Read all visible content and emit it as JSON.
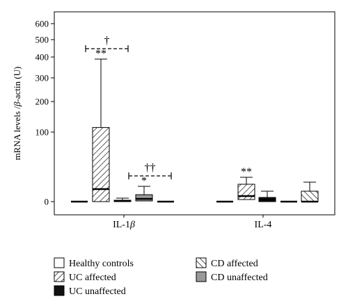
{
  "chart_data": {
    "type": "box",
    "title": "",
    "ylabel_parts": [
      "mRNA levels /",
      "β",
      "-actin (U)"
    ],
    "y_ticks": [
      {
        "label": "0",
        "value": 0
      },
      {
        "label": "100",
        "value": 100
      },
      {
        "label": "200",
        "value": 200
      },
      {
        "label": "300",
        "value": 300
      },
      {
        "label": "400",
        "value": 400
      },
      {
        "label": "500",
        "value": 500
      },
      {
        "label": "600",
        "value": 600
      }
    ],
    "categories": [
      {
        "label_main": "IL-1",
        "label_greek": "β"
      },
      {
        "label_main": "IL-4",
        "label_greek": ""
      }
    ],
    "series": [
      {
        "name": "Healthy controls",
        "fill": "white",
        "pattern": "none"
      },
      {
        "name": "UC affected",
        "fill": "hatch",
        "pattern": "forward"
      },
      {
        "name": "UC unaffected",
        "fill": "#111111",
        "pattern": "none"
      },
      {
        "name": "CD affected",
        "fill": "hatch",
        "pattern": "backward"
      },
      {
        "name": "CD unaffected",
        "fill": "#999999",
        "pattern": "none"
      }
    ],
    "boxes": [
      {
        "category": 0,
        "series": 0,
        "min": 0,
        "q1": 0,
        "median": 0,
        "q3": 0,
        "max": 0
      },
      {
        "category": 0,
        "series": 1,
        "min": 0,
        "q1": 0,
        "median": 18,
        "q3": 115,
        "max": 390
      },
      {
        "category": 0,
        "series": 2,
        "min": 0,
        "q1": 0,
        "median": 1,
        "q3": 2,
        "max": 5
      },
      {
        "category": 0,
        "series": 4,
        "min": 0,
        "q1": 1,
        "median": 4,
        "q3": 10,
        "max": 22
      },
      {
        "category": 0,
        "series": 0,
        "min": 0,
        "q1": 0,
        "median": 0,
        "q3": 0,
        "max": 0
      },
      {
        "category": 1,
        "series": 0,
        "min": 0,
        "q1": 0,
        "median": 0,
        "q3": 0,
        "max": 0
      },
      {
        "category": 1,
        "series": 1,
        "min": 0,
        "q1": 3,
        "median": 8,
        "q3": 25,
        "max": 35
      },
      {
        "category": 1,
        "series": 2,
        "min": 0,
        "q1": 0,
        "median": 3,
        "q3": 6,
        "max": 15
      },
      {
        "category": 1,
        "series": 0,
        "min": 0,
        "q1": 0,
        "median": 0,
        "q3": 0,
        "max": 0
      },
      {
        "category": 1,
        "series": 3,
        "min": 0,
        "q1": 0,
        "median": 0,
        "q3": 15,
        "max": 28
      }
    ],
    "annotations": [
      {
        "text": "**",
        "category": 0,
        "box": 1,
        "position": "above-whisker"
      },
      {
        "text": "†",
        "category": 0,
        "type": "bracket",
        "from_box": 1,
        "to_box": 2
      },
      {
        "text": "*",
        "category": 0,
        "box": 3,
        "position": "above-whisker"
      },
      {
        "text": "††",
        "category": 0,
        "type": "bracket",
        "from_box": 3,
        "to_box": 4
      },
      {
        "text": "**",
        "category": 1,
        "box": 6,
        "position": "above-whisker"
      }
    ],
    "legend": {
      "placement": "bottom",
      "items": [
        {
          "name": "Healthy controls",
          "series": 0
        },
        {
          "name": "CD affected",
          "series": 3
        },
        {
          "name": "UC affected",
          "series": 1
        },
        {
          "name": "CD unaffected",
          "series": 4
        },
        {
          "name": "UC unaffected",
          "series": 2
        }
      ]
    }
  }
}
